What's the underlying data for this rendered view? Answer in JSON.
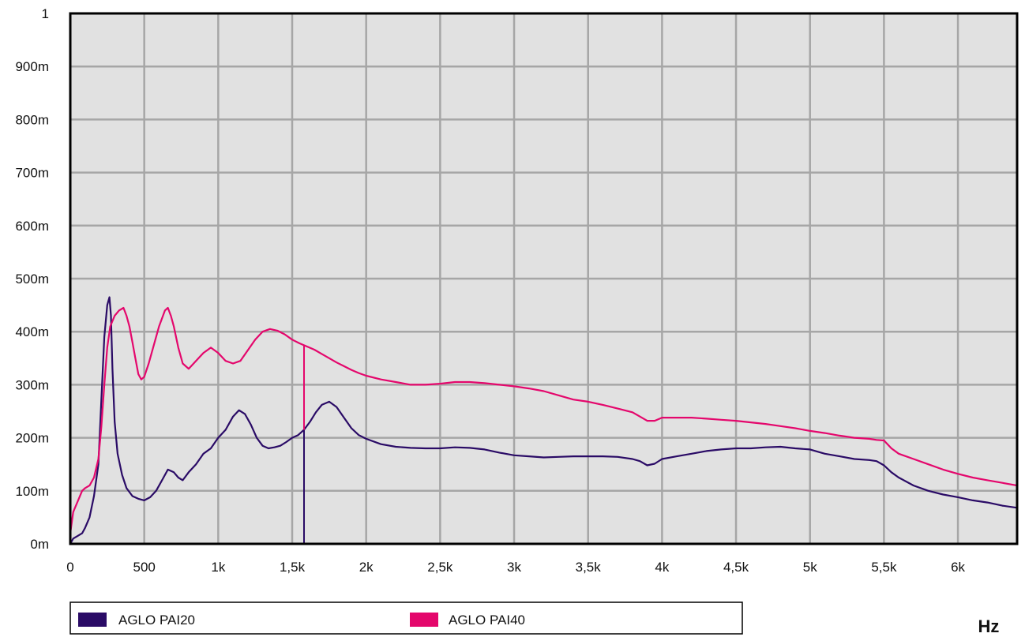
{
  "chart_data": {
    "type": "line",
    "xlabel": "Hz",
    "ylabel": "",
    "xlim": [
      0,
      6400
    ],
    "ylim": [
      0,
      1
    ],
    "x_ticks": [
      0,
      500,
      1000,
      1500,
      2000,
      2500,
      3000,
      3500,
      4000,
      4500,
      5000,
      5500,
      6000
    ],
    "x_tick_labels": [
      "0",
      "500",
      "1k",
      "1,5k",
      "2k",
      "2,5k",
      "3k",
      "3,5k",
      "4k",
      "4,5k",
      "5k",
      "5,5k",
      "6k"
    ],
    "y_ticks": [
      0,
      0.1,
      0.2,
      0.3,
      0.4,
      0.5,
      0.6,
      0.7,
      0.8,
      0.9,
      1.0
    ],
    "y_tick_labels": [
      "0m",
      "100m",
      "200m",
      "300m",
      "400m",
      "500m",
      "600m",
      "700m",
      "800m",
      "900m",
      "1"
    ],
    "grid": true,
    "background": "#e1e1e1",
    "legend_position": "bottom",
    "cursor_x": 1580,
    "series": [
      {
        "name": "AGLO PAI20",
        "color": "#2a0b66",
        "x": [
          0,
          20,
          50,
          80,
          100,
          130,
          160,
          190,
          210,
          230,
          250,
          265,
          275,
          285,
          300,
          320,
          350,
          380,
          420,
          460,
          500,
          540,
          580,
          620,
          660,
          700,
          730,
          760,
          800,
          850,
          900,
          950,
          1000,
          1050,
          1100,
          1140,
          1180,
          1220,
          1260,
          1300,
          1340,
          1380,
          1420,
          1460,
          1500,
          1540,
          1580,
          1620,
          1660,
          1700,
          1750,
          1800,
          1850,
          1900,
          1950,
          2000,
          2100,
          2200,
          2300,
          2400,
          2500,
          2600,
          2700,
          2800,
          2900,
          3000,
          3100,
          3200,
          3300,
          3400,
          3500,
          3600,
          3700,
          3800,
          3850,
          3900,
          3950,
          4000,
          4100,
          4200,
          4300,
          4400,
          4500,
          4600,
          4700,
          4800,
          4900,
          5000,
          5100,
          5200,
          5300,
          5400,
          5450,
          5500,
          5550,
          5600,
          5700,
          5800,
          5900,
          6000,
          6100,
          6200,
          6300,
          6400
        ],
        "values": [
          0.0,
          0.01,
          0.015,
          0.02,
          0.03,
          0.05,
          0.09,
          0.15,
          0.27,
          0.39,
          0.45,
          0.465,
          0.43,
          0.33,
          0.23,
          0.17,
          0.13,
          0.105,
          0.09,
          0.085,
          0.082,
          0.088,
          0.1,
          0.12,
          0.14,
          0.135,
          0.125,
          0.12,
          0.135,
          0.15,
          0.17,
          0.18,
          0.2,
          0.215,
          0.24,
          0.252,
          0.245,
          0.225,
          0.2,
          0.185,
          0.18,
          0.182,
          0.185,
          0.192,
          0.2,
          0.205,
          0.215,
          0.23,
          0.248,
          0.262,
          0.268,
          0.258,
          0.238,
          0.218,
          0.205,
          0.198,
          0.188,
          0.183,
          0.181,
          0.18,
          0.18,
          0.182,
          0.181,
          0.178,
          0.172,
          0.167,
          0.165,
          0.163,
          0.164,
          0.165,
          0.165,
          0.165,
          0.164,
          0.16,
          0.156,
          0.148,
          0.151,
          0.16,
          0.165,
          0.17,
          0.175,
          0.178,
          0.18,
          0.18,
          0.182,
          0.183,
          0.18,
          0.178,
          0.17,
          0.165,
          0.16,
          0.158,
          0.156,
          0.148,
          0.135,
          0.125,
          0.11,
          0.1,
          0.093,
          0.088,
          0.082,
          0.078,
          0.072,
          0.068
        ]
      },
      {
        "name": "AGLO PAI40",
        "color": "#e4076c",
        "x": [
          0,
          20,
          50,
          80,
          100,
          130,
          160,
          190,
          210,
          230,
          250,
          270,
          300,
          330,
          360,
          380,
          400,
          420,
          440,
          460,
          480,
          500,
          530,
          560,
          600,
          640,
          660,
          680,
          700,
          730,
          760,
          800,
          850,
          900,
          950,
          1000,
          1050,
          1100,
          1150,
          1200,
          1250,
          1300,
          1350,
          1400,
          1450,
          1500,
          1550,
          1600,
          1650,
          1700,
          1750,
          1800,
          1850,
          1900,
          1950,
          2000,
          2100,
          2200,
          2300,
          2400,
          2500,
          2600,
          2700,
          2800,
          2900,
          3000,
          3100,
          3200,
          3300,
          3400,
          3500,
          3600,
          3700,
          3800,
          3850,
          3900,
          3950,
          4000,
          4100,
          4200,
          4300,
          4400,
          4500,
          4600,
          4700,
          4800,
          4900,
          5000,
          5100,
          5200,
          5300,
          5400,
          5450,
          5500,
          5550,
          5600,
          5700,
          5800,
          5900,
          6000,
          6100,
          6200,
          6300,
          6400
        ],
        "values": [
          0.02,
          0.06,
          0.08,
          0.1,
          0.105,
          0.11,
          0.125,
          0.16,
          0.22,
          0.3,
          0.37,
          0.41,
          0.43,
          0.44,
          0.445,
          0.43,
          0.41,
          0.38,
          0.35,
          0.32,
          0.31,
          0.315,
          0.34,
          0.37,
          0.41,
          0.44,
          0.445,
          0.43,
          0.41,
          0.37,
          0.34,
          0.33,
          0.345,
          0.36,
          0.37,
          0.36,
          0.345,
          0.34,
          0.345,
          0.365,
          0.385,
          0.4,
          0.405,
          0.402,
          0.395,
          0.385,
          0.378,
          0.372,
          0.366,
          0.358,
          0.35,
          0.342,
          0.335,
          0.328,
          0.322,
          0.317,
          0.31,
          0.305,
          0.3,
          0.3,
          0.302,
          0.305,
          0.305,
          0.303,
          0.3,
          0.297,
          0.293,
          0.288,
          0.28,
          0.272,
          0.268,
          0.262,
          0.255,
          0.248,
          0.24,
          0.232,
          0.232,
          0.238,
          0.238,
          0.238,
          0.236,
          0.234,
          0.232,
          0.229,
          0.226,
          0.222,
          0.218,
          0.213,
          0.209,
          0.204,
          0.2,
          0.198,
          0.196,
          0.195,
          0.18,
          0.17,
          0.16,
          0.15,
          0.14,
          0.132,
          0.125,
          0.12,
          0.115,
          0.11
        ]
      }
    ]
  }
}
